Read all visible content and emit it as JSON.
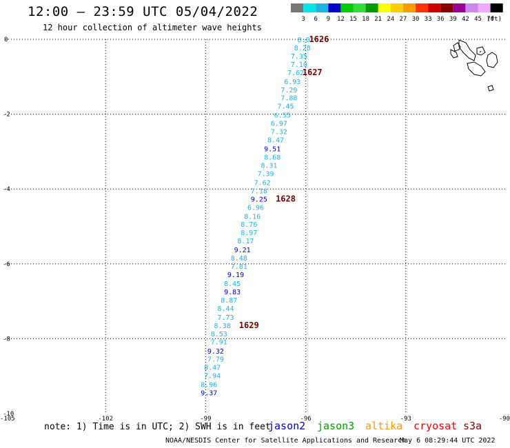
{
  "header": {
    "title": "12:00 – 23:59 UTC 05/04/2022",
    "subtitle": "12 hour collection of altimeter wave heights"
  },
  "colorbar": {
    "colors": [
      "#777777",
      "#00e8e8",
      "#1eb4e6",
      "#0000cc",
      "#00cc00",
      "#33dd33",
      "#009900",
      "#ffff00",
      "#ffcc00",
      "#ff9900",
      "#ff3300",
      "#cc0000",
      "#880000",
      "#990099",
      "#cc88ee",
      "#eeaaff",
      "#000000"
    ],
    "labels": [
      "3",
      "6",
      "9",
      "12",
      "15",
      "18",
      "21",
      "24",
      "27",
      "30",
      "33",
      "36",
      "39",
      "42",
      "45",
      "70"
    ],
    "unit": "(ft)"
  },
  "axes": {
    "y_ticks": [
      "0",
      "-2",
      "-4",
      "-6",
      "-8",
      "-10"
    ],
    "x_ticks": [
      "-105",
      "-102",
      "-99",
      "-96",
      "-93",
      "-90"
    ]
  },
  "chart_data": {
    "type": "scatter",
    "x_range": [
      -105,
      -90
    ],
    "y_range": [
      -10,
      0
    ],
    "points": [
      {
        "lon": -96.0,
        "lat": 0.0,
        "v": "8.02",
        "c": "#1eb4e6"
      },
      {
        "lon": -96.1,
        "lat": -0.22,
        "v": "8.28",
        "c": "#1eb4e6"
      },
      {
        "lon": -96.2,
        "lat": -0.44,
        "v": "7.35",
        "c": "#1eb4e6"
      },
      {
        "lon": -96.2,
        "lat": -0.66,
        "v": "7.10",
        "c": "#1eb4e6"
      },
      {
        "lon": -96.3,
        "lat": -0.88,
        "v": "7.62",
        "c": "#1eb4e6"
      },
      {
        "lon": -96.4,
        "lat": -1.12,
        "v": "6.93",
        "c": "#1eb4e6"
      },
      {
        "lon": -96.5,
        "lat": -1.34,
        "v": "7.29",
        "c": "#1eb4e6"
      },
      {
        "lon": -96.5,
        "lat": -1.56,
        "v": "7.88",
        "c": "#1eb4e6"
      },
      {
        "lon": -96.6,
        "lat": -1.78,
        "v": "7.45",
        "c": "#1eb4e6"
      },
      {
        "lon": -96.7,
        "lat": -2.02,
        "v": "6.55",
        "c": "#1eb4e6"
      },
      {
        "lon": -96.8,
        "lat": -2.24,
        "v": "6.97",
        "c": "#1eb4e6"
      },
      {
        "lon": -96.8,
        "lat": -2.46,
        "v": "7.32",
        "c": "#1eb4e6"
      },
      {
        "lon": -96.9,
        "lat": -2.68,
        "v": "8.47",
        "c": "#1eb4e6"
      },
      {
        "lon": -97.0,
        "lat": -2.92,
        "v": "9.51",
        "c": "#0000cc"
      },
      {
        "lon": -97.0,
        "lat": -3.14,
        "v": "8.68",
        "c": "#1eb4e6"
      },
      {
        "lon": -97.1,
        "lat": -3.36,
        "v": "8.31",
        "c": "#1eb4e6"
      },
      {
        "lon": -97.2,
        "lat": -3.58,
        "v": "7.39",
        "c": "#1eb4e6"
      },
      {
        "lon": -97.3,
        "lat": -3.82,
        "v": "7.62",
        "c": "#1eb4e6"
      },
      {
        "lon": -97.4,
        "lat": -4.04,
        "v": "7.18",
        "c": "#1eb4e6"
      },
      {
        "lon": -97.4,
        "lat": -4.26,
        "v": "9.25",
        "c": "#0000cc"
      },
      {
        "lon": -97.5,
        "lat": -4.48,
        "v": "6.96",
        "c": "#1eb4e6"
      },
      {
        "lon": -97.6,
        "lat": -4.72,
        "v": "8.16",
        "c": "#1eb4e6"
      },
      {
        "lon": -97.7,
        "lat": -4.94,
        "v": "8.76",
        "c": "#1eb4e6"
      },
      {
        "lon": -97.7,
        "lat": -5.16,
        "v": "8.97",
        "c": "#1eb4e6"
      },
      {
        "lon": -97.8,
        "lat": -5.38,
        "v": "8.17",
        "c": "#1eb4e6"
      },
      {
        "lon": -97.9,
        "lat": -5.62,
        "v": "9.21",
        "c": "#0000cc"
      },
      {
        "lon": -98.0,
        "lat": -5.84,
        "v": "8.48",
        "c": "#1eb4e6"
      },
      {
        "lon": -98.0,
        "lat": -6.06,
        "v": "7.81",
        "c": "#1eb4e6"
      },
      {
        "lon": -98.1,
        "lat": -6.28,
        "v": "9.19",
        "c": "#0000cc"
      },
      {
        "lon": -98.2,
        "lat": -6.52,
        "v": "8.45",
        "c": "#1eb4e6"
      },
      {
        "lon": -98.2,
        "lat": -6.74,
        "v": "9.83",
        "c": "#0000cc"
      },
      {
        "lon": -98.3,
        "lat": -6.96,
        "v": "8.87",
        "c": "#1eb4e6"
      },
      {
        "lon": -98.4,
        "lat": -7.18,
        "v": "8.44",
        "c": "#1eb4e6"
      },
      {
        "lon": -98.4,
        "lat": -7.42,
        "v": "7.73",
        "c": "#1eb4e6"
      },
      {
        "lon": -98.5,
        "lat": -7.64,
        "v": "8.38",
        "c": "#1eb4e6"
      },
      {
        "lon": -98.6,
        "lat": -7.86,
        "v": "8.53",
        "c": "#1eb4e6"
      },
      {
        "lon": -98.6,
        "lat": -8.08,
        "v": "7.91",
        "c": "#1eb4e6"
      },
      {
        "lon": -98.7,
        "lat": -8.32,
        "v": "9.32",
        "c": "#0000cc"
      },
      {
        "lon": -98.7,
        "lat": -8.54,
        "v": "7.79",
        "c": "#1eb4e6"
      },
      {
        "lon": -98.8,
        "lat": -8.76,
        "v": "8.47",
        "c": "#1eb4e6"
      },
      {
        "lon": -98.8,
        "lat": -8.98,
        "v": "7.94",
        "c": "#1eb4e6"
      },
      {
        "lon": -98.9,
        "lat": -9.22,
        "v": "8.96",
        "c": "#1eb4e6"
      },
      {
        "lon": -98.9,
        "lat": -9.44,
        "v": "9.37",
        "c": "#0000cc"
      }
    ],
    "time_labels": [
      {
        "lon": -95.9,
        "lat": 0.0,
        "text": "1626"
      },
      {
        "lon": -96.1,
        "lat": -0.88,
        "text": "1627"
      },
      {
        "lon": -96.9,
        "lat": -4.26,
        "text": "1628"
      },
      {
        "lon": -98.0,
        "lat": -7.64,
        "text": "1629"
      }
    ]
  },
  "footer": {
    "note": "note: 1) Time is in UTC; 2) SWH is in feet",
    "satellites": [
      {
        "name": "jason2",
        "color": "#0000dd"
      },
      {
        "name": "jason3",
        "color": "#00a000"
      },
      {
        "name": "altika",
        "color": "#ff9900"
      },
      {
        "name": "cryosat",
        "color": "#ee0000"
      },
      {
        "name": "s3a",
        "color": "#880000"
      }
    ],
    "credit": "NOAA/NESDIS Center for Satellite Applications and Research",
    "timestamp": "May  6 08:29:44 UTC 2022"
  }
}
